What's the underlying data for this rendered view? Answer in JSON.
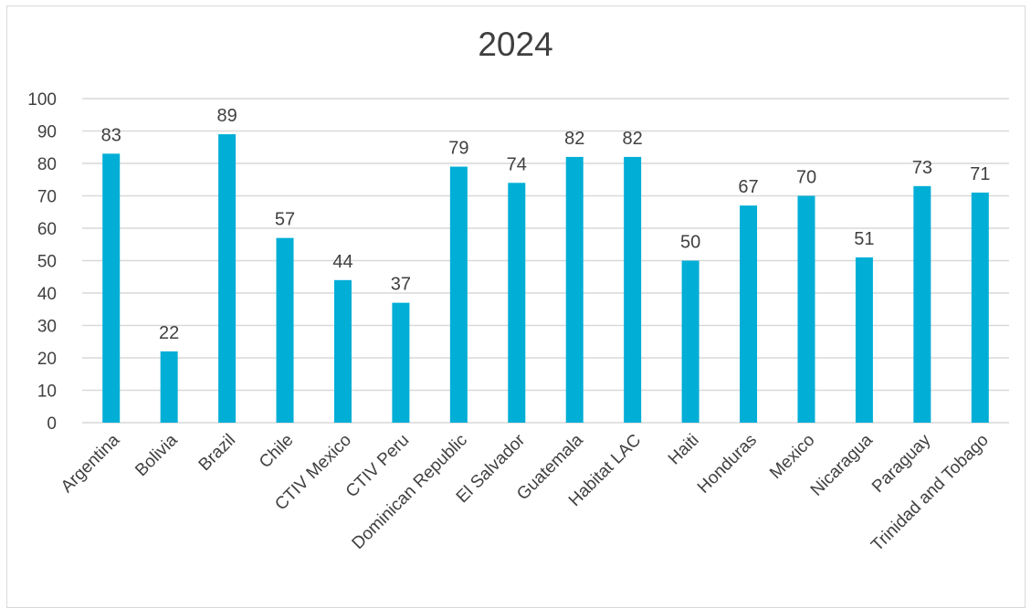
{
  "chart_data": {
    "type": "bar",
    "title": "2024",
    "categories": [
      "Argentina",
      "Bolivia",
      "Brazil",
      "Chile",
      "CTIV Mexico",
      "CTIV Peru",
      "Dominican Republic",
      "El Salvador",
      "Guatemala",
      "Habitat LAC",
      "Haiti",
      "Honduras",
      "Mexico",
      "Nicaragua",
      "Paraguay",
      "Trinidad and Tobago"
    ],
    "values": [
      83,
      22,
      89,
      57,
      44,
      37,
      79,
      74,
      82,
      82,
      50,
      67,
      70,
      51,
      73,
      71
    ],
    "data_labels": [
      "83",
      "22",
      "89",
      "57",
      "44",
      "37",
      "79",
      "74",
      "82",
      "82",
      "50",
      "67",
      "70",
      "51",
      "73",
      "71"
    ],
    "ylim": [
      0,
      100
    ],
    "yticks": [
      "0",
      "10",
      "20",
      "30",
      "40",
      "50",
      "60",
      "70",
      "80",
      "90",
      "100"
    ],
    "grid": true,
    "legend": "none",
    "bar_color": "#00aed6",
    "grid_color": "#d9d9d9",
    "text_color": "#404040"
  }
}
